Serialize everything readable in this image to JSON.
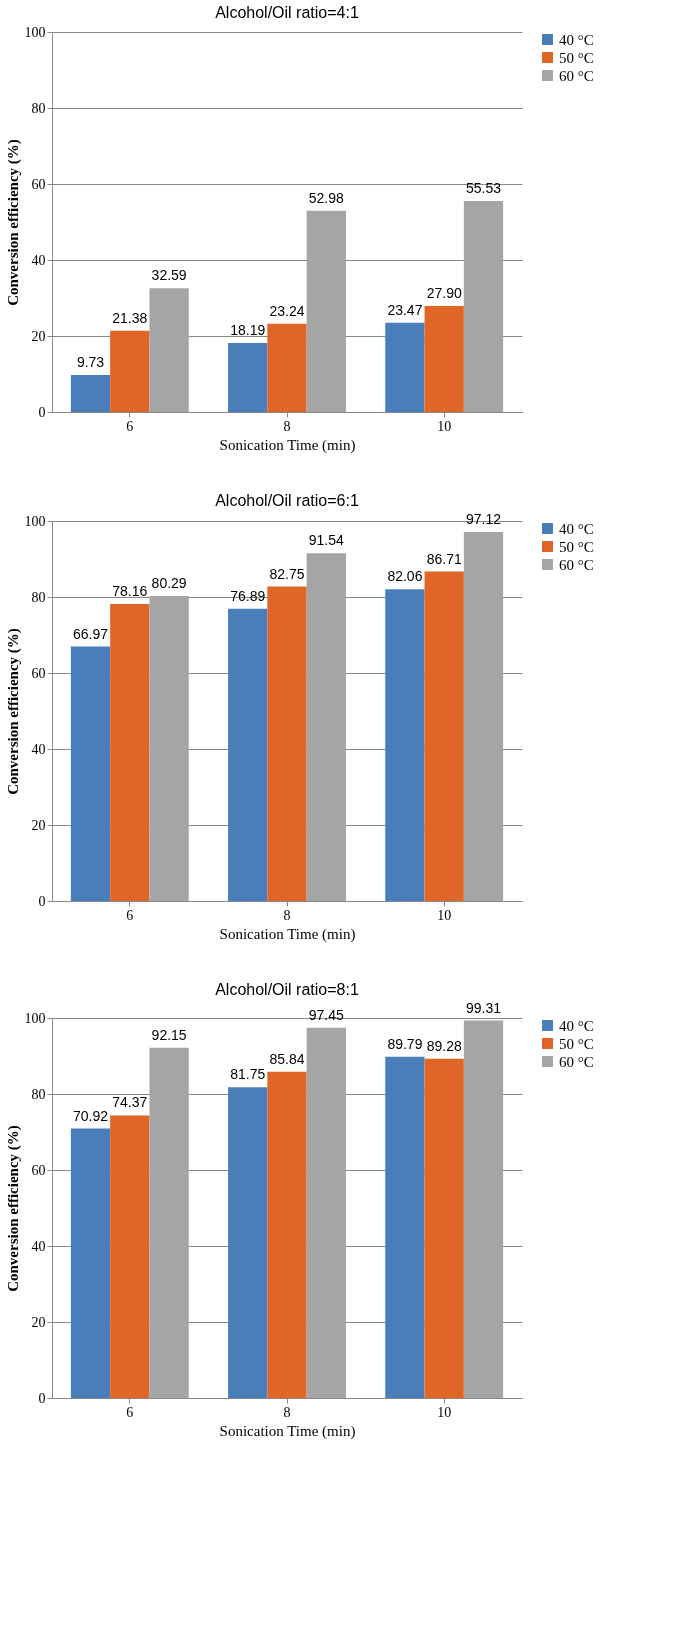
{
  "chart_data": [
    {
      "type": "bar",
      "title": "Alcohol/Oil ratio=4:1",
      "xlabel": "Sonication Time (min)",
      "ylabel": "Conversion efficiency (%)",
      "categories": [
        "6",
        "8",
        "10"
      ],
      "ylim": [
        0,
        100
      ],
      "yticks": [
        0,
        20,
        40,
        60,
        80,
        100
      ],
      "grid": "y",
      "legend": "top right",
      "series": [
        {
          "name": "40 °C",
          "color": "#4a7ebb",
          "values": [
            9.73,
            18.19,
            23.47
          ],
          "value_labels": [
            "9.73",
            "18.19",
            "23.47"
          ]
        },
        {
          "name": "50 °C",
          "color": "#e06628",
          "values": [
            21.38,
            23.24,
            27.9
          ],
          "value_labels": [
            "21.38",
            "23.24",
            "27.90"
          ]
        },
        {
          "name": "60 °C",
          "color": "#a5a5a5",
          "values": [
            32.59,
            52.98,
            55.53
          ],
          "value_labels": [
            "32.59",
            "52.98",
            "55.53"
          ]
        }
      ]
    },
    {
      "type": "bar",
      "title": "Alcohol/Oil ratio=6:1",
      "xlabel": "Sonication Time (min)",
      "ylabel": "Conversion efficiency (%)",
      "categories": [
        "6",
        "8",
        "10"
      ],
      "ylim": [
        0,
        100
      ],
      "yticks": [
        0,
        20,
        40,
        60,
        80,
        100
      ],
      "grid": "y",
      "legend": "top right",
      "series": [
        {
          "name": "40 °C",
          "color": "#4a7ebb",
          "values": [
            66.97,
            76.89,
            82.06
          ],
          "value_labels": [
            "66.97",
            "76.89",
            "82.06"
          ]
        },
        {
          "name": "50 °C",
          "color": "#e06628",
          "values": [
            78.16,
            82.75,
            86.71
          ],
          "value_labels": [
            "78.16",
            "82.75",
            "86.71"
          ]
        },
        {
          "name": "60 °C",
          "color": "#a5a5a5",
          "values": [
            80.29,
            91.54,
            97.12
          ],
          "value_labels": [
            "80.29",
            "91.54",
            "97.12"
          ]
        }
      ]
    },
    {
      "type": "bar",
      "title": "Alcohol/Oil ratio=8:1",
      "xlabel": "Sonication Time (min)",
      "ylabel": "Conversion efficiency (%)",
      "categories": [
        "6",
        "8",
        "10"
      ],
      "ylim": [
        0,
        100
      ],
      "yticks": [
        0,
        20,
        40,
        60,
        80,
        100
      ],
      "grid": "y",
      "legend": "top right",
      "series": [
        {
          "name": "40 °C",
          "color": "#4a7ebb",
          "values": [
            70.92,
            81.75,
            89.79
          ],
          "value_labels": [
            "70.92",
            "81.75",
            "89.79"
          ]
        },
        {
          "name": "50 °C",
          "color": "#e06628",
          "values": [
            74.37,
            85.84,
            89.28
          ],
          "value_labels": [
            "74.37",
            "85.84",
            "89.28"
          ]
        },
        {
          "name": "60 °C",
          "color": "#a5a5a5",
          "values": [
            92.15,
            97.45,
            99.31
          ],
          "value_labels": [
            "92.15",
            "97.45",
            "99.31"
          ]
        }
      ]
    }
  ]
}
